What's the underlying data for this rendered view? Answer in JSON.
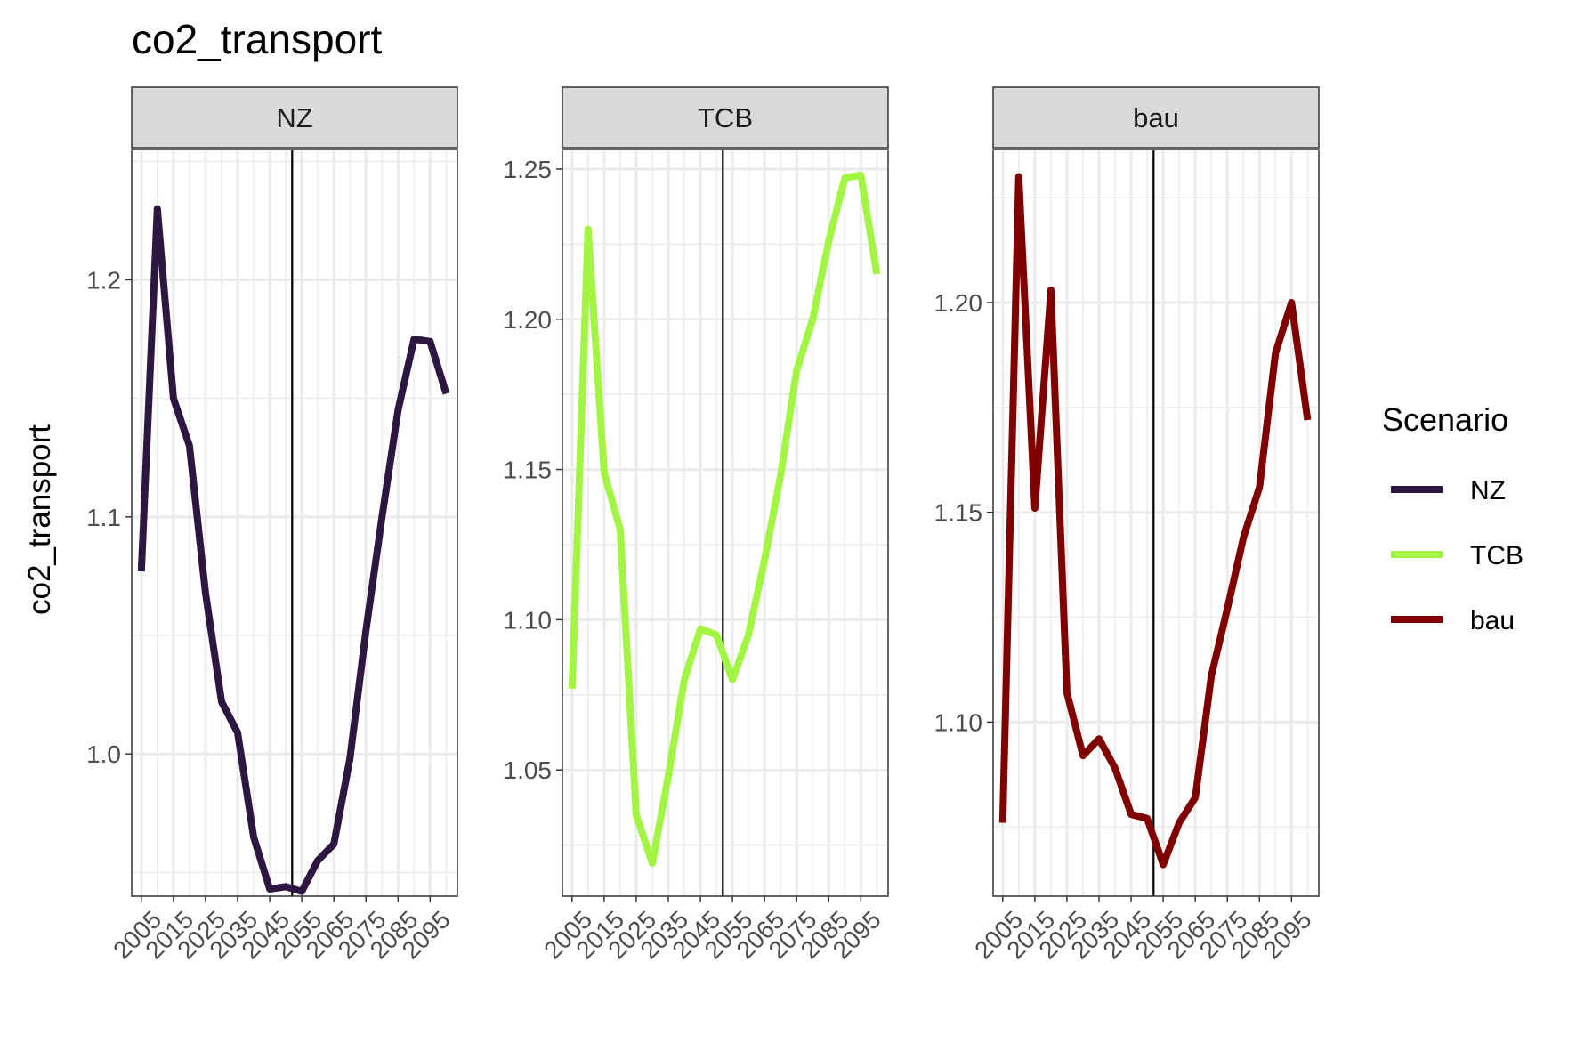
{
  "chart_data": {
    "type": "line",
    "title": "co2_transport",
    "ylabel": "co2_transport",
    "xlabel": "",
    "x": [
      2005,
      2010,
      2015,
      2020,
      2025,
      2030,
      2035,
      2040,
      2045,
      2050,
      2055,
      2060,
      2065,
      2070,
      2075,
      2080,
      2085,
      2090,
      2095,
      2100
    ],
    "x_tick_labels": [
      "2005",
      "2015",
      "2025",
      "2035",
      "2045",
      "2055",
      "2065",
      "2075",
      "2085",
      "2095"
    ],
    "reference_line_x": 2052,
    "grid": true,
    "legend": {
      "title": "Scenario",
      "position": "right",
      "entries": [
        {
          "name": "NZ",
          "color": "#2d1640"
        },
        {
          "name": "TCB",
          "color": "#a2f542"
        },
        {
          "name": "bau",
          "color": "#800000"
        }
      ]
    },
    "panels": [
      {
        "strip": "NZ",
        "color": "#2d1640",
        "ylim": [
          0.94,
          1.255
        ],
        "y_ticks": [
          1.0,
          1.1,
          1.2
        ],
        "y_tick_labels": [
          "1.0",
          "1.1",
          "1.2"
        ],
        "values": [
          1.077,
          1.23,
          1.15,
          1.13,
          1.068,
          1.022,
          1.009,
          0.965,
          0.943,
          0.944,
          0.942,
          0.955,
          0.962,
          0.998,
          1.052,
          1.1,
          1.145,
          1.175,
          1.174,
          1.152
        ]
      },
      {
        "strip": "TCB",
        "color": "#a2f542",
        "ylim": [
          1.008,
          1.2565
        ],
        "y_ticks": [
          1.05,
          1.1,
          1.15,
          1.2,
          1.25
        ],
        "y_tick_labels": [
          "1.05",
          "1.10",
          "1.15",
          "1.20",
          "1.25"
        ],
        "values": [
          1.077,
          1.23,
          1.149,
          1.13,
          1.035,
          1.019,
          1.048,
          1.08,
          1.097,
          1.095,
          1.08,
          1.095,
          1.12,
          1.148,
          1.183,
          1.2,
          1.226,
          1.247,
          1.248,
          1.215
        ]
      },
      {
        "strip": "bau",
        "color": "#800000",
        "ylim": [
          1.0585,
          1.2365
        ],
        "y_ticks": [
          1.1,
          1.15,
          1.2
        ],
        "y_tick_labels": [
          "1.10",
          "1.15",
          "1.20"
        ],
        "values": [
          1.076,
          1.23,
          1.151,
          1.203,
          1.107,
          1.092,
          1.096,
          1.089,
          1.078,
          1.077,
          1.066,
          1.076,
          1.082,
          1.111,
          1.127,
          1.144,
          1.156,
          1.188,
          1.2,
          1.172
        ]
      }
    ]
  }
}
